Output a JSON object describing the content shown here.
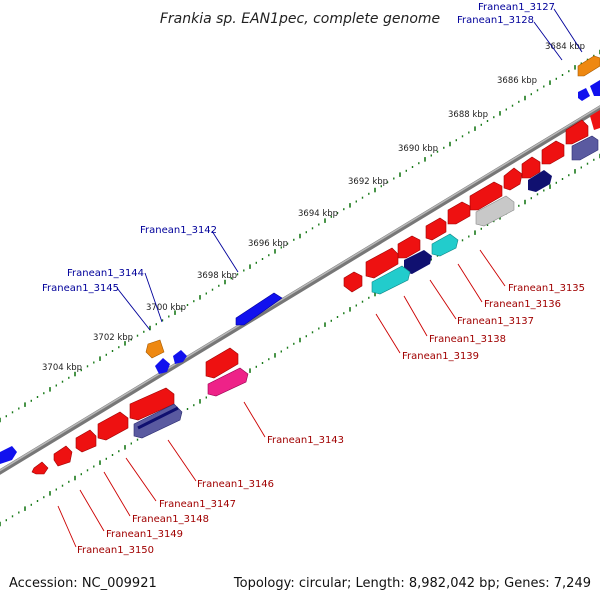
{
  "title": "Frankia sp. EAN1pec, complete genome",
  "footer": {
    "accession": "Accession: NC_009921",
    "summary": "Topology: circular; Length: 8,982,042 bp; Genes: 7,249"
  },
  "kbp_labels": [
    "3684 kbp",
    "3686 kbp",
    "3688 kbp",
    "3690 kbp",
    "3692 kbp",
    "3694 kbp",
    "3696 kbp",
    "3698 kbp",
    "3700 kbp",
    "3702 kbp",
    "3704 kbp"
  ],
  "upper_genes": [
    "Franean1_3127",
    "Franean1_3128",
    "Franean1_3142",
    "Franean1_3144",
    "Franean1_3145"
  ],
  "lower_genes": [
    "Franean1_3135",
    "Franean1_3136",
    "Franean1_3137",
    "Franean1_3138",
    "Franean1_3139",
    "Franean1_3143",
    "Franean1_3146",
    "Franean1_3147",
    "Franean1_3148",
    "Franean1_3149",
    "Franean1_3150"
  ],
  "colors": {
    "backbone": "#888888",
    "tick": "#1a7a1a",
    "red": "#ee1111",
    "blue": "#1111ee",
    "navy": "#101070",
    "slate": "#5a5aa0",
    "cyan": "#22cccc",
    "orange": "#ee8811",
    "pink": "#ee2288",
    "gray": "#c8c8c8"
  }
}
